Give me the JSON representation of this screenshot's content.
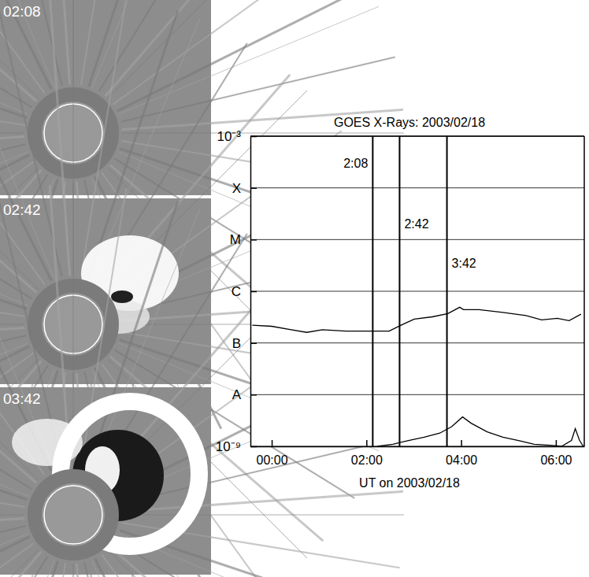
{
  "chart_data": {
    "type": "line",
    "title": "GOES X-Rays: 2003/02/18",
    "x_label": "UT on 2003/02/18",
    "log": "y",
    "grid": true,
    "xlim": [
      -0.45,
      6.6
    ],
    "xticks": [
      {
        "value": 0,
        "label": "00:00"
      },
      {
        "value": 2,
        "label": "02:00"
      },
      {
        "value": 4,
        "label": "04:00"
      },
      {
        "value": 6,
        "label": "06:00"
      }
    ],
    "ylim": [
      1e-09,
      0.001
    ],
    "yticks": [
      {
        "value": 1e-09,
        "label": "10⁻⁹"
      },
      {
        "value": 1e-08,
        "label": "A"
      },
      {
        "value": 1e-07,
        "label": "B"
      },
      {
        "value": 1e-06,
        "label": "C"
      },
      {
        "value": 1e-05,
        "label": "M"
      },
      {
        "value": 0.0001,
        "label": "X"
      },
      {
        "value": 0.001,
        "label": "10⁻³"
      }
    ],
    "series": [
      {
        "color": "#000000",
        "x": [
          -0.41,
          0,
          0.41,
          0.74,
          1.07,
          1.57,
          2.07,
          2.48,
          2.73,
          3.01,
          3.39,
          3.72,
          3.97,
          4.05,
          4.38,
          4.88,
          5.37,
          5.7,
          6.03,
          6.28,
          6.53
        ],
        "values": [
          2.2e-07,
          2.1e-07,
          1.8e-07,
          1.6e-07,
          1.8e-07,
          1.7e-07,
          1.7e-07,
          1.7e-07,
          2.2e-07,
          2.9e-07,
          3.2e-07,
          3.7e-07,
          4.9e-07,
          4.4e-07,
          4.4e-07,
          3.9e-07,
          3.4e-07,
          2.8e-07,
          3e-07,
          2.7e-07,
          3.6e-07
        ]
      },
      {
        "color": "#000000",
        "x": [
          2.23,
          2.56,
          2.89,
          3.22,
          3.55,
          3.8,
          4.03,
          4.21,
          4.55,
          4.88,
          5.21,
          5.54,
          5.87,
          6.12,
          6.33,
          6.41,
          6.5,
          6.58
        ],
        "values": [
          1e-09,
          1.1e-09,
          1.3e-09,
          1.5e-09,
          1.8e-09,
          2.4e-09,
          3.7e-09,
          2.8e-09,
          1.9e-09,
          1.5e-09,
          1.3e-09,
          1.1e-09,
          1.05e-09,
          1e-09,
          1.3e-09,
          2.2e-09,
          1.3e-09,
          1e-09
        ]
      }
    ],
    "annotations": [
      {
        "x": 2.1333,
        "label": "2:08"
      },
      {
        "x": 2.7,
        "label": "2:42"
      },
      {
        "x": 3.7,
        "label": "3:42"
      }
    ]
  },
  "images": [
    {
      "label": "02:08"
    },
    {
      "label": "02:42"
    },
    {
      "label": "03:42"
    }
  ]
}
